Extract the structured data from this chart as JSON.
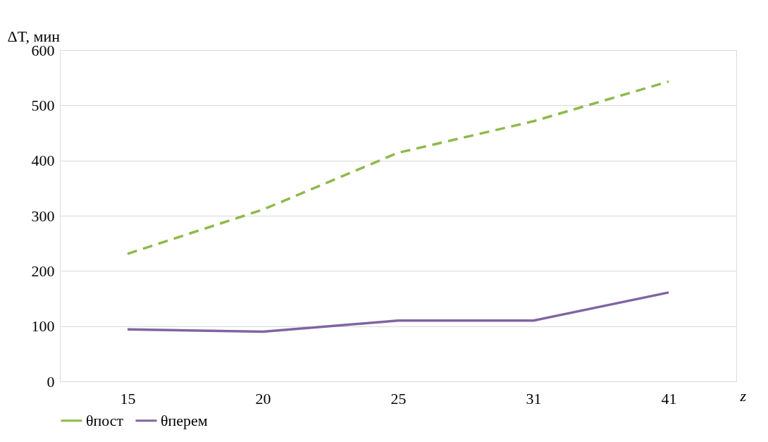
{
  "chart_data": {
    "type": "line",
    "xlabel": "z",
    "ylabel": "ΔT, мин",
    "categories": [
      "15",
      "20",
      "25",
      "31",
      "41"
    ],
    "series": [
      {
        "name": "θпост",
        "color": "#8fb94b",
        "line_style": "dashed",
        "values": [
          231,
          311,
          414,
          471,
          543
        ]
      },
      {
        "name": "θперем",
        "color": "#8064a2",
        "line_style": "solid",
        "values": [
          94,
          90,
          110,
          110,
          161
        ]
      }
    ],
    "ylim": [
      0,
      600
    ],
    "yticks": [
      0,
      100,
      200,
      300,
      400,
      500,
      600
    ],
    "grid": "y",
    "legend": "bottom",
    "marker": "none"
  }
}
